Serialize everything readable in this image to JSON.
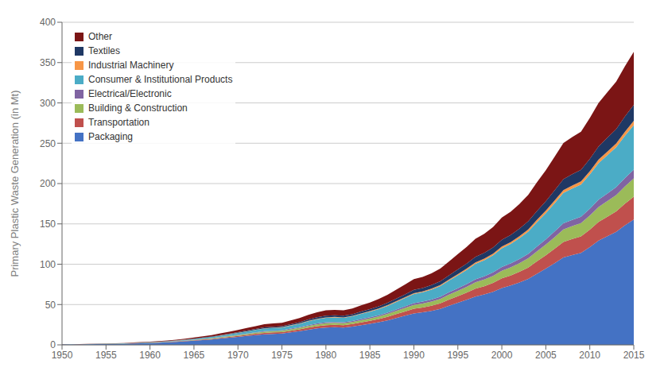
{
  "chart_data": {
    "type": "area",
    "stacked": true,
    "ylabel": "Primary Plastic Waste Generation (in Mt)",
    "x": [
      1950,
      1951,
      1952,
      1953,
      1954,
      1955,
      1956,
      1957,
      1958,
      1959,
      1960,
      1961,
      1962,
      1963,
      1964,
      1965,
      1966,
      1967,
      1968,
      1969,
      1970,
      1971,
      1972,
      1973,
      1974,
      1975,
      1976,
      1977,
      1978,
      1979,
      1980,
      1981,
      1982,
      1983,
      1984,
      1985,
      1986,
      1987,
      1988,
      1989,
      1990,
      1991,
      1992,
      1993,
      1994,
      1995,
      1996,
      1997,
      1998,
      1999,
      2000,
      2001,
      2002,
      2003,
      2004,
      2005,
      2006,
      2007,
      2008,
      2009,
      2010,
      2011,
      2012,
      2013,
      2014,
      2015
    ],
    "series": [
      {
        "name": "Packaging",
        "color": "#4472C4",
        "values": [
          0.4,
          0.5,
          0.6,
          0.7,
          0.9,
          1.0,
          1.2,
          1.4,
          1.7,
          2.0,
          2.3,
          2.7,
          3.1,
          3.7,
          4.4,
          5.1,
          5.9,
          6.7,
          7.8,
          8.8,
          9.9,
          11.0,
          12.1,
          13.1,
          13.6,
          14.0,
          15.5,
          16.9,
          18.8,
          20.4,
          21.5,
          21.8,
          21.5,
          22.6,
          24.5,
          26.1,
          28.0,
          30.4,
          33.2,
          36.1,
          39.0,
          40.3,
          42.2,
          44.6,
          48.6,
          52.1,
          55.8,
          59.9,
          62.5,
          65.8,
          70.5,
          73.6,
          77.4,
          81.7,
          88.2,
          94.5,
          101.2,
          108.4,
          111.4,
          114.1,
          121.2,
          129.2,
          134.7,
          140.2,
          148.2,
          155.5
        ]
      },
      {
        "name": "Transportation",
        "color": "#C0504D",
        "values": [
          0.04,
          0.05,
          0.06,
          0.07,
          0.08,
          0.1,
          0.12,
          0.14,
          0.17,
          0.2,
          0.24,
          0.29,
          0.34,
          0.41,
          0.49,
          0.58,
          0.68,
          0.8,
          0.93,
          1.08,
          1.25,
          1.42,
          1.59,
          1.77,
          1.83,
          1.88,
          2.1,
          2.31,
          2.59,
          2.82,
          2.99,
          3.04,
          2.99,
          3.16,
          3.43,
          3.7,
          4.03,
          4.42,
          4.92,
          5.37,
          5.88,
          6.1,
          6.44,
          6.9,
          7.58,
          8.31,
          9.0,
          9.82,
          10.27,
          10.97,
          11.9,
          12.46,
          13.27,
          14.19,
          15.45,
          16.6,
          17.97,
          19.3,
          19.89,
          20.44,
          21.75,
          23.23,
          24.28,
          25.32,
          26.84,
          28.26
        ]
      },
      {
        "name": "Building & Construction",
        "color": "#9BBB59",
        "values": [
          0.03,
          0.04,
          0.04,
          0.05,
          0.07,
          0.08,
          0.09,
          0.11,
          0.13,
          0.16,
          0.19,
          0.23,
          0.27,
          0.33,
          0.39,
          0.46,
          0.55,
          0.64,
          0.75,
          0.87,
          1.01,
          1.15,
          1.29,
          1.43,
          1.47,
          1.51,
          1.69,
          1.85,
          2.07,
          2.25,
          2.38,
          2.42,
          2.38,
          2.51,
          2.73,
          2.94,
          3.21,
          3.52,
          3.92,
          4.29,
          4.7,
          4.87,
          5.14,
          5.52,
          6.07,
          6.66,
          7.23,
          7.89,
          8.25,
          8.81,
          9.57,
          10.01,
          10.66,
          11.4,
          12.41,
          13.33,
          14.42,
          15.48,
          15.95,
          16.38,
          17.43,
          18.6,
          19.43,
          20.25,
          21.47,
          22.6
        ]
      },
      {
        "name": "Electrical/Electronic",
        "color": "#8064A2",
        "values": [
          0.01,
          0.01,
          0.02,
          0.02,
          0.03,
          0.03,
          0.04,
          0.05,
          0.06,
          0.07,
          0.08,
          0.1,
          0.12,
          0.14,
          0.17,
          0.2,
          0.24,
          0.28,
          0.33,
          0.39,
          0.45,
          0.52,
          0.59,
          0.66,
          0.68,
          0.7,
          0.79,
          0.87,
          0.98,
          1.06,
          1.13,
          1.15,
          1.13,
          1.19,
          1.3,
          1.4,
          1.53,
          1.68,
          1.87,
          2.05,
          2.25,
          2.33,
          2.46,
          2.64,
          2.91,
          3.19,
          3.46,
          3.79,
          3.96,
          4.23,
          4.6,
          4.81,
          5.12,
          5.48,
          5.97,
          6.41,
          6.94,
          7.46,
          7.68,
          7.89,
          8.4,
          8.97,
          9.37,
          9.77,
          10.35,
          10.9
        ]
      },
      {
        "name": "Consumer & Institutional Products",
        "color": "#4BACC6",
        "values": [
          0.06,
          0.07,
          0.08,
          0.1,
          0.12,
          0.15,
          0.18,
          0.21,
          0.26,
          0.31,
          0.38,
          0.46,
          0.55,
          0.67,
          0.82,
          0.98,
          1.15,
          1.36,
          1.6,
          1.88,
          2.2,
          2.53,
          2.88,
          3.24,
          3.35,
          3.45,
          3.88,
          4.27,
          4.8,
          5.24,
          5.57,
          5.66,
          5.57,
          5.89,
          6.43,
          6.94,
          7.59,
          8.35,
          9.33,
          10.22,
          11.22,
          11.65,
          12.3,
          13.21,
          14.55,
          15.99,
          17.38,
          19.01,
          19.91,
          21.29,
          23.17,
          24.25,
          25.84,
          27.71,
          30.18,
          32.43,
          35.1,
          37.7,
          38.88,
          39.95,
          42.53,
          45.41,
          47.44,
          49.47,
          52.44,
          55.2
        ]
      },
      {
        "name": "Industrial Machinery",
        "color": "#F79646",
        "values": [
          0.01,
          0.01,
          0.01,
          0.01,
          0.01,
          0.02,
          0.02,
          0.02,
          0.03,
          0.03,
          0.04,
          0.05,
          0.06,
          0.07,
          0.08,
          0.1,
          0.11,
          0.13,
          0.16,
          0.18,
          0.22,
          0.25,
          0.28,
          0.32,
          0.33,
          0.34,
          0.38,
          0.42,
          0.47,
          0.51,
          0.54,
          0.55,
          0.54,
          0.57,
          0.62,
          0.67,
          0.73,
          0.8,
          0.9,
          0.98,
          1.08,
          1.12,
          1.18,
          1.27,
          1.4,
          1.53,
          1.67,
          1.83,
          1.91,
          2.04,
          2.23,
          2.33,
          2.48,
          2.66,
          2.9,
          3.11,
          3.37,
          3.62,
          3.73,
          3.83,
          4.08,
          4.35,
          4.55,
          4.74,
          5.02,
          5.28
        ]
      },
      {
        "name": "Textiles",
        "color": "#1F3864",
        "values": [
          0.02,
          0.02,
          0.03,
          0.04,
          0.04,
          0.05,
          0.06,
          0.07,
          0.09,
          0.11,
          0.13,
          0.16,
          0.19,
          0.23,
          0.28,
          0.33,
          0.4,
          0.47,
          0.56,
          0.66,
          0.78,
          0.9,
          1.03,
          1.16,
          1.2,
          1.23,
          1.39,
          1.53,
          1.72,
          1.88,
          1.99,
          2.02,
          1.99,
          2.11,
          2.3,
          2.47,
          2.71,
          2.98,
          3.33,
          3.65,
          4.01,
          4.16,
          4.4,
          4.73,
          5.21,
          5.73,
          6.23,
          6.83,
          7.14,
          7.64,
          8.32,
          8.7,
          9.28,
          9.94,
          10.82,
          11.62,
          12.58,
          13.52,
          13.94,
          14.32,
          15.26,
          16.3,
          17.03,
          17.76,
          18.83,
          19.83
        ]
      },
      {
        "name": "Other",
        "color": "#7B1515",
        "values": [
          0.1,
          0.12,
          0.14,
          0.17,
          0.2,
          0.24,
          0.28,
          0.33,
          0.4,
          0.47,
          0.55,
          0.65,
          0.77,
          0.92,
          1.09,
          1.28,
          1.5,
          1.75,
          2.04,
          2.36,
          2.73,
          3.11,
          3.51,
          3.93,
          4.06,
          4.17,
          4.67,
          5.13,
          5.76,
          6.27,
          6.64,
          6.74,
          6.64,
          7.01,
          7.64,
          8.22,
          9.0,
          9.89,
          11.05,
          12.1,
          13.28,
          13.78,
          14.56,
          15.66,
          17.24,
          18.96,
          20.61,
          22.58,
          23.63,
          25.25,
          27.51,
          28.78,
          30.68,
          32.88,
          35.8,
          38.48,
          41.66,
          44.77,
          46.17,
          47.44,
          50.52,
          53.96,
          56.4,
          58.83,
          62.42,
          65.7
        ]
      }
    ],
    "xlim": [
      1950,
      2015
    ],
    "xticks": [
      1950,
      1955,
      1960,
      1965,
      1970,
      1975,
      1980,
      1985,
      1990,
      1995,
      2000,
      2005,
      2010,
      2015
    ],
    "ylim": [
      0,
      400
    ],
    "yticks": [
      0,
      50,
      100,
      150,
      200,
      250,
      300,
      350,
      400
    ],
    "grid": true,
    "legend": "upper left"
  }
}
